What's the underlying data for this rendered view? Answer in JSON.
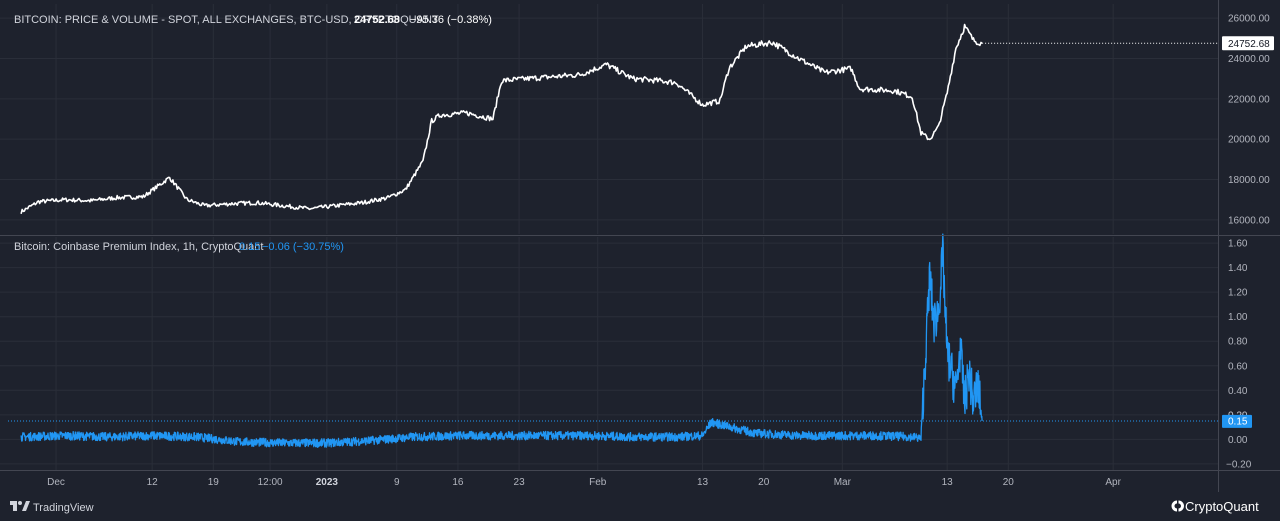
{
  "colors": {
    "background": "#1e222d",
    "grid": "#2a2e39",
    "price_line": "#ffffff",
    "premium_line": "#2196f3",
    "text": "#d1d4dc",
    "axis_text": "#b2b5be"
  },
  "top_panel": {
    "title": "BITCOIN: PRICE & VOLUME - SPOT, ALL EXCHANGES, BTC-USD, CRYPTOQUANT",
    "last_value": "24752.68",
    "change": "−95.36 (−0.38%)",
    "price_tag": "24752.68"
  },
  "bottom_panel": {
    "title": "Bitcoin: Coinbase Premium Index, 1h, CryptoQuant",
    "last_value": "0.15",
    "change": "−0.06 (−30.75%)",
    "value_tag": "0.15",
    "partial_label": "0.20"
  },
  "footer": {
    "tradingview": "TradingView",
    "cryptoquant": "CryptoQuant"
  },
  "icons": [
    "tradingview-logo-icon",
    "cryptoquant-logo-icon"
  ],
  "chart_data": [
    {
      "type": "line",
      "title": "BITCOIN: PRICE & VOLUME - SPOT, ALL EXCHANGES, BTC-USD, CRYPTOQUANT",
      "series": [
        {
          "x": [
            "2022-11-27",
            "2022-11-29",
            "2022-12-02",
            "2022-12-05",
            "2022-12-08",
            "2022-12-11",
            "2022-12-14",
            "2022-12-16",
            "2022-12-18",
            "2022-12-21",
            "2022-12-24",
            "2022-12-27",
            "2022-12-30",
            "2023-01-02",
            "2023-01-05",
            "2023-01-08",
            "2023-01-10",
            "2023-01-12",
            "2023-01-13",
            "2023-01-14",
            "2023-01-17",
            "2023-01-20",
            "2023-01-21",
            "2023-01-24",
            "2023-01-27",
            "2023-01-30",
            "2023-02-02",
            "2023-02-05",
            "2023-02-08",
            "2023-02-10",
            "2023-02-13",
            "2023-02-15",
            "2023-02-16",
            "2023-02-18",
            "2023-02-21",
            "2023-02-24",
            "2023-02-27",
            "2023-03-02",
            "2023-03-03",
            "2023-03-07",
            "2023-03-09",
            "2023-03-10",
            "2023-03-11",
            "2023-03-12",
            "2023-03-13",
            "2023-03-14",
            "2023-03-15",
            "2023-03-16",
            "2023-03-17"
          ],
          "y": [
            16400,
            16900,
            17000,
            16950,
            17100,
            17150,
            18100,
            17000,
            16700,
            16800,
            16850,
            16700,
            16550,
            16700,
            16850,
            17100,
            17500,
            18900,
            20900,
            21200,
            21300,
            21000,
            22900,
            23000,
            23100,
            23200,
            23700,
            23000,
            22900,
            22800,
            21700,
            21900,
            23500,
            24600,
            24800,
            24000,
            23300,
            23500,
            22500,
            22400,
            22100,
            20300,
            20000,
            20600,
            22300,
            24500,
            25600,
            24900,
            24752.68
          ]
        }
      ],
      "ylim": [
        15300,
        26700
      ],
      "yticks": [
        "26000.00",
        "24000.00",
        "22000.00",
        "20000.00",
        "18000.00",
        "16000.00"
      ],
      "last_value": 24752.68,
      "grid": true
    },
    {
      "type": "line",
      "title": "Bitcoin: Coinbase Premium Index, 1h, CryptoQuant",
      "series": [
        {
          "x": [
            "2022-11-27",
            "2022-12-02",
            "2022-12-07",
            "2022-12-12",
            "2022-12-17",
            "2022-12-22",
            "2022-12-27",
            "2023-01-01",
            "2023-01-06",
            "2023-01-11",
            "2023-01-16",
            "2023-01-21",
            "2023-01-26",
            "2023-01-31",
            "2023-02-05",
            "2023-02-10",
            "2023-02-13",
            "2023-02-14",
            "2023-02-19",
            "2023-02-24",
            "2023-03-01",
            "2023-03-05",
            "2023-03-09",
            "2023-03-10",
            "2023-03-11",
            "2023-03-11 12:00",
            "2023-03-12",
            "2023-03-12 12:00",
            "2023-03-13",
            "2023-03-14",
            "2023-03-14 12:00",
            "2023-03-15",
            "2023-03-15 12:00",
            "2023-03-16",
            "2023-03-16 12:00",
            "2023-03-17"
          ],
          "y": [
            0.02,
            0.03,
            0.02,
            0.03,
            0.02,
            -0.02,
            -0.03,
            -0.03,
            -0.01,
            0.02,
            0.03,
            0.03,
            0.03,
            0.03,
            0.02,
            0.02,
            0.03,
            0.14,
            0.05,
            0.03,
            0.03,
            0.03,
            0.02,
            0.01,
            1.32,
            0.95,
            1.05,
            1.5,
            0.7,
            0.4,
            0.75,
            0.3,
            0.55,
            0.3,
            0.45,
            0.15
          ]
        }
      ],
      "ylim": [
        -0.25,
        1.65
      ],
      "yticks": [
        "1.60",
        "1.40",
        "1.20",
        "1.00",
        "0.80",
        "0.60",
        "0.40",
        "0.20",
        "0.00",
        "−0.20"
      ],
      "last_value": 0.15,
      "grid": true
    }
  ],
  "x_axis": {
    "start": "2022-11-25T12:00",
    "end": "2023-04-13",
    "ticks": [
      {
        "label": "Dec",
        "date": "2022-12-01",
        "bold": false
      },
      {
        "label": "12",
        "date": "2022-12-12",
        "bold": false
      },
      {
        "label": "19",
        "date": "2022-12-19",
        "bold": false
      },
      {
        "label": "12:00",
        "date": "2022-12-25T12:00",
        "bold": false
      },
      {
        "label": "2023",
        "date": "2023-01-01",
        "bold": true
      },
      {
        "label": "9",
        "date": "2023-01-09",
        "bold": false
      },
      {
        "label": "16",
        "date": "2023-01-16",
        "bold": false
      },
      {
        "label": "23",
        "date": "2023-01-23",
        "bold": false
      },
      {
        "label": "Feb",
        "date": "2023-02-01",
        "bold": false
      },
      {
        "label": "13",
        "date": "2023-02-13",
        "bold": false
      },
      {
        "label": "20",
        "date": "2023-02-20",
        "bold": false
      },
      {
        "label": "Mar",
        "date": "2023-03-01",
        "bold": false
      },
      {
        "label": "13",
        "date": "2023-03-13",
        "bold": false
      },
      {
        "label": "20",
        "date": "2023-03-20",
        "bold": false
      },
      {
        "label": "Apr",
        "date": "2023-04-01",
        "bold": false
      }
    ]
  }
}
